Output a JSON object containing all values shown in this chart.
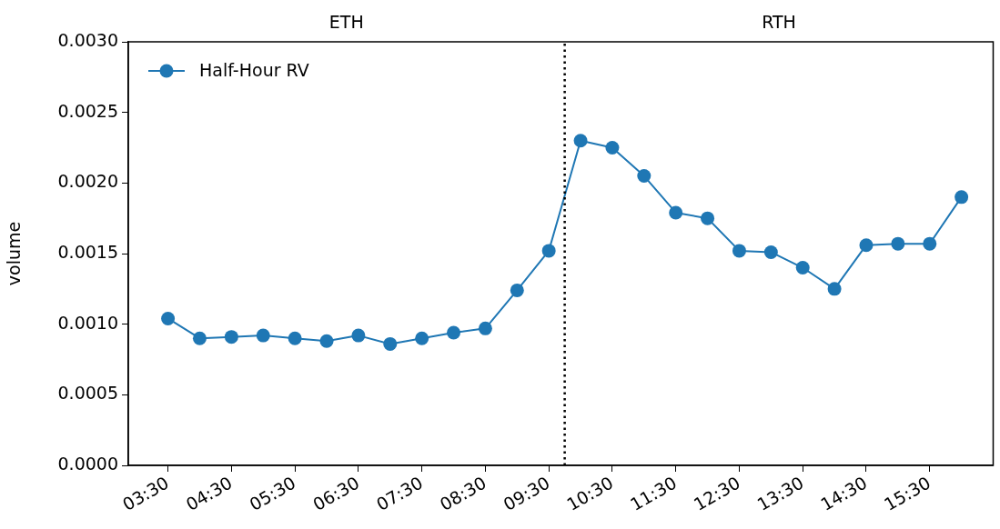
{
  "chart_data": {
    "type": "line",
    "ylabel": "volume",
    "x": [
      3.5,
      4,
      4.5,
      5,
      5.5,
      6,
      6.5,
      7,
      7.5,
      8,
      8.5,
      9,
      9.5,
      10,
      10.5,
      11,
      11.5,
      12,
      12.5,
      13,
      13.5,
      14,
      14.5,
      15,
      15.5,
      16
    ],
    "series": [
      {
        "name": "Half-Hour RV",
        "color": "#1f77b4",
        "values": [
          0.00104,
          0.0009,
          0.00091,
          0.00092,
          0.0009,
          0.00088,
          0.00092,
          0.00086,
          0.0009,
          0.00094,
          0.00097,
          0.00124,
          0.00152,
          0.0023,
          0.00225,
          0.00205,
          0.00179,
          0.00175,
          0.00152,
          0.00151,
          0.0014,
          0.00125,
          0.00156,
          0.00157,
          0.00157,
          0.0019
        ]
      }
    ],
    "xlim": [
      2.875,
      16.5
    ],
    "xticks": [
      {
        "value": 3.5,
        "label": "03:30"
      },
      {
        "value": 4.5,
        "label": "04:30"
      },
      {
        "value": 5.5,
        "label": "05:30"
      },
      {
        "value": 6.5,
        "label": "06:30"
      },
      {
        "value": 7.5,
        "label": "07:30"
      },
      {
        "value": 8.5,
        "label": "08:30"
      },
      {
        "value": 9.5,
        "label": "09:30"
      },
      {
        "value": 10.5,
        "label": "10:30"
      },
      {
        "value": 11.5,
        "label": "11:30"
      },
      {
        "value": 12.5,
        "label": "12:30"
      },
      {
        "value": 13.5,
        "label": "13:30"
      },
      {
        "value": 14.5,
        "label": "14:30"
      },
      {
        "value": 15.5,
        "label": "15:30"
      }
    ],
    "ylim": [
      0,
      0.003
    ],
    "yticks": [
      {
        "value": 0,
        "label": "0.0000"
      },
      {
        "value": 0.0005,
        "label": "0.0005"
      },
      {
        "value": 0.001,
        "label": "0.0010"
      },
      {
        "value": 0.0015,
        "label": "0.0015"
      },
      {
        "value": 0.002,
        "label": "0.0020"
      },
      {
        "value": 0.0025,
        "label": "0.0025"
      },
      {
        "value": 0.003,
        "label": "0.0030"
      }
    ],
    "ref_lines": [
      {
        "axis": "x",
        "value": 9.75,
        "color": "#000000",
        "line_style": "dotted"
      }
    ],
    "annotations": [
      "ETH",
      "RTH"
    ],
    "legend": "top left",
    "marker": "circle",
    "line_style": "solid",
    "grid": false
  }
}
